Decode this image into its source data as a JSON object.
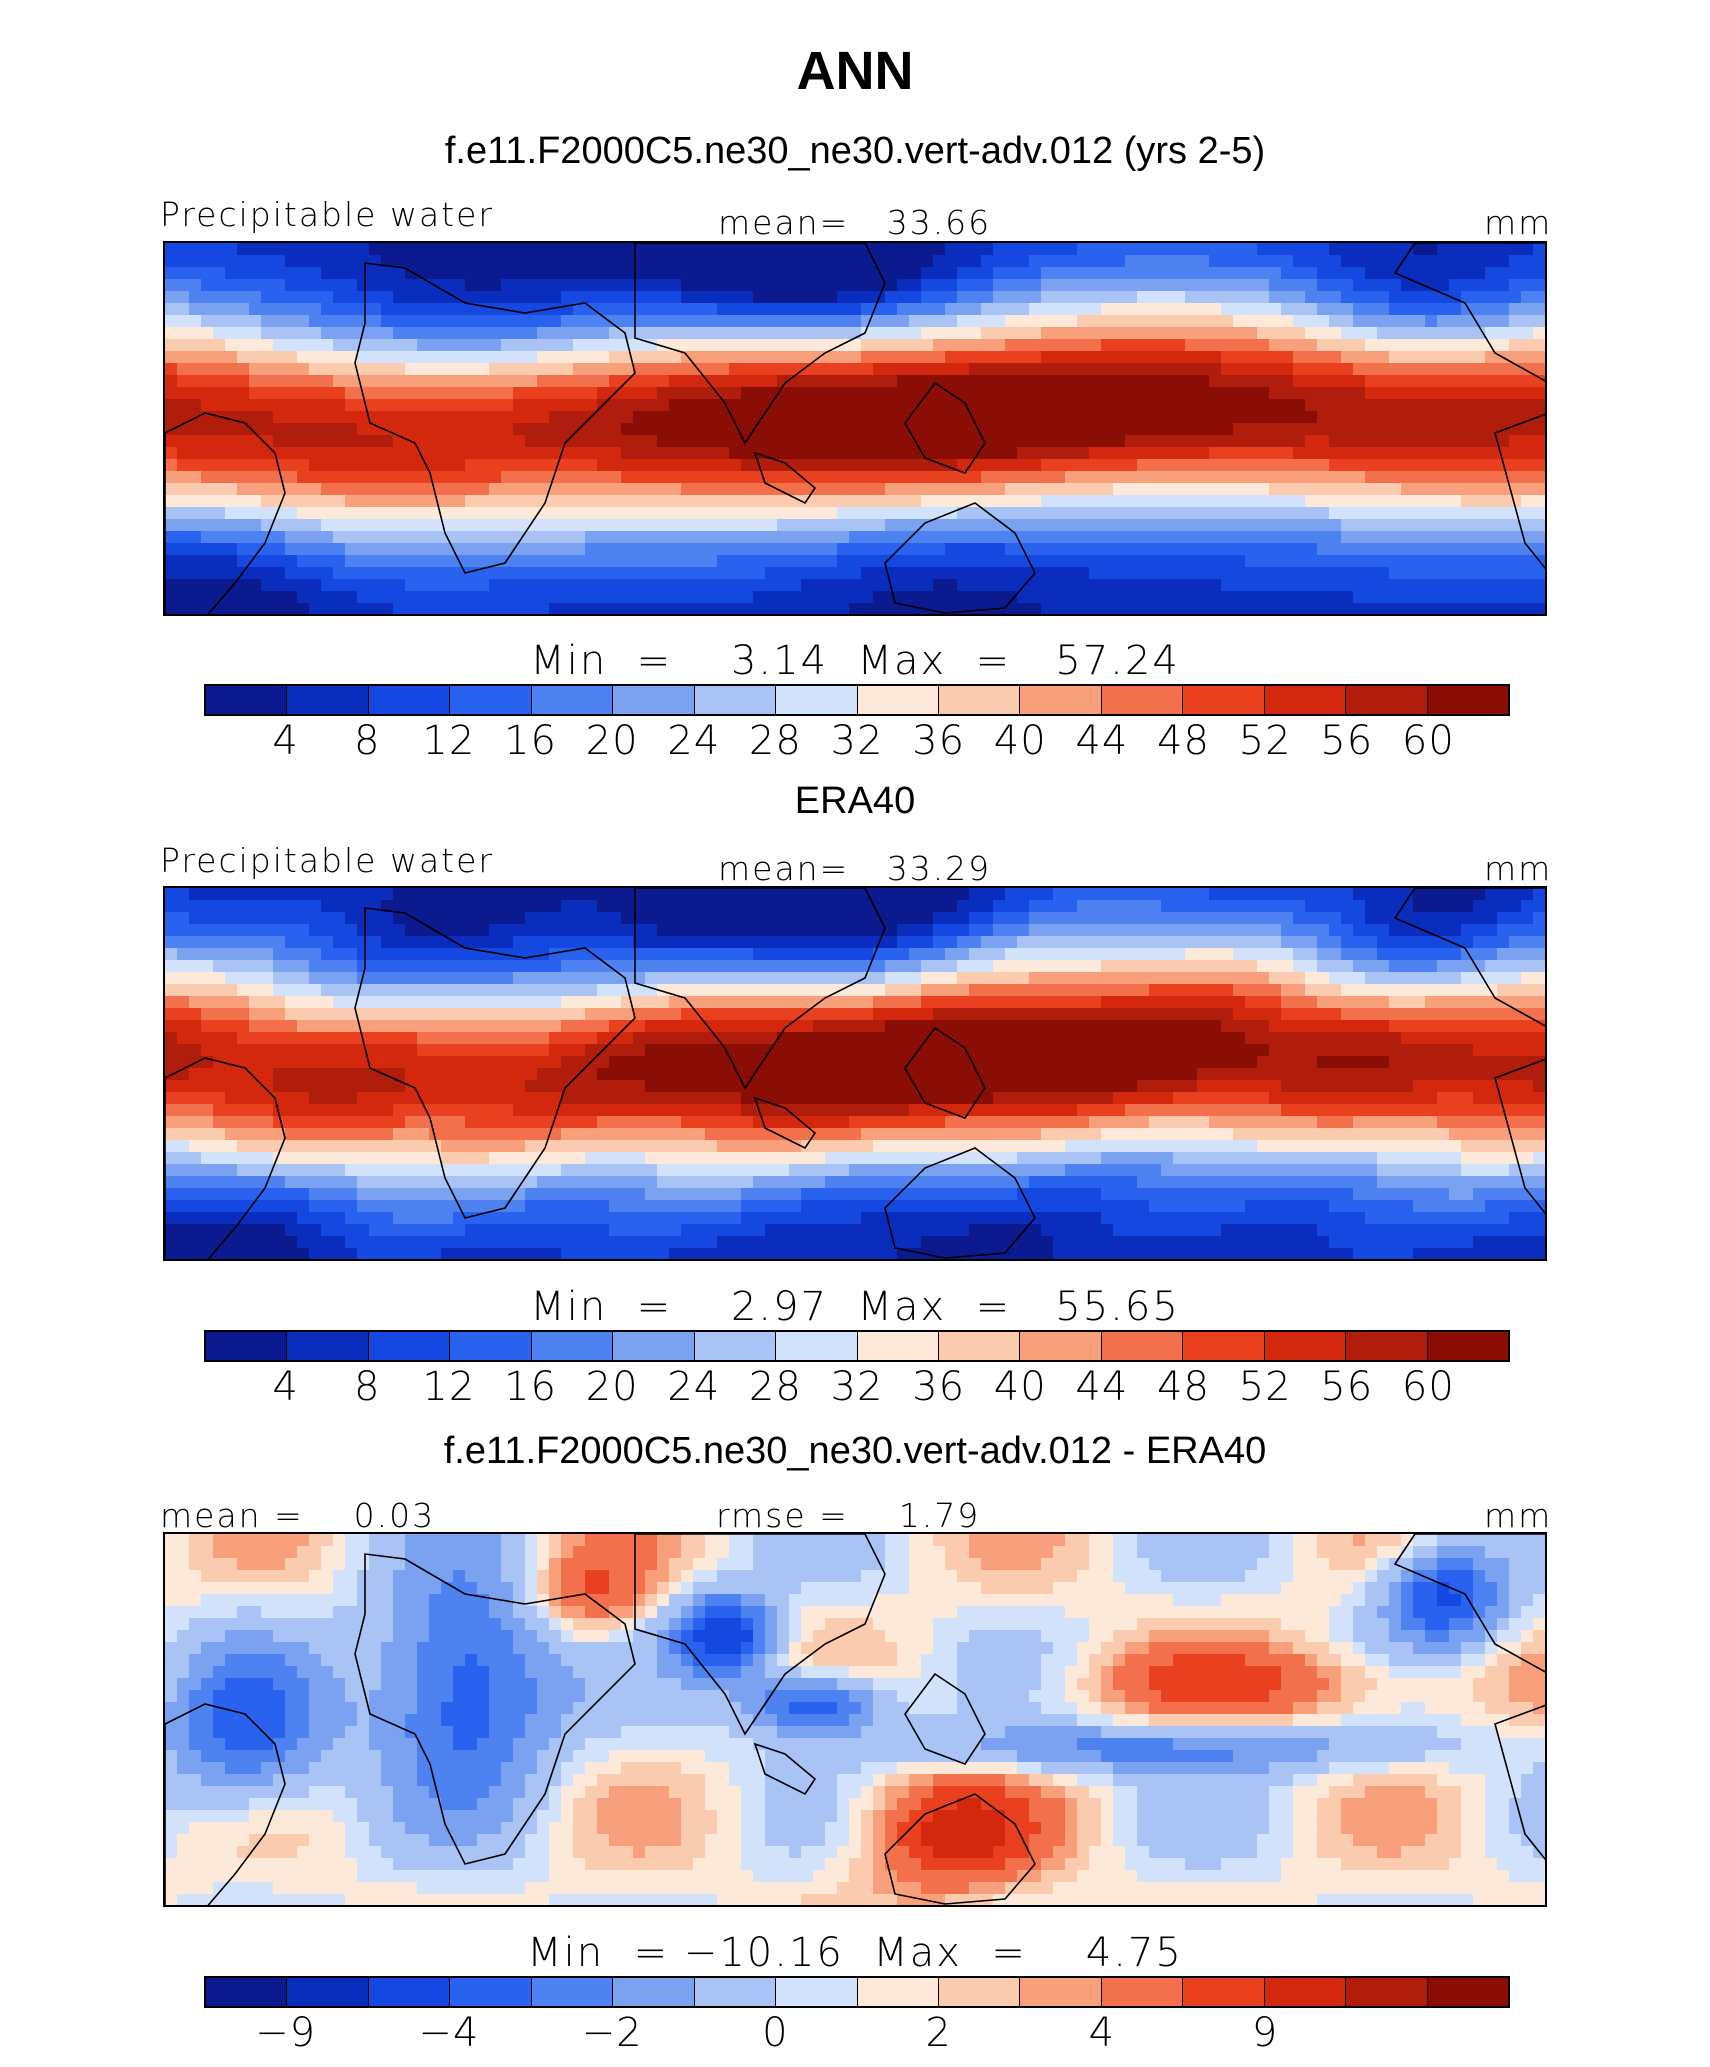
{
  "title": "ANN",
  "colors": [
    "#0b1a8e",
    "#0a2dbd",
    "#1448e0",
    "#2a62f0",
    "#4d82f0",
    "#7aa2f0",
    "#a9c3f5",
    "#d2e2fb",
    "#fde9da",
    "#fbcbb0",
    "#f8a07c",
    "#f3704d",
    "#e9401f",
    "#d4280e",
    "#b01d0c",
    "#8a0d06"
  ],
  "panels": [
    {
      "subtitle": "f.e11.F2000C5.ne30_ne30.vert-adv.012 (yrs 2-5)",
      "left_label": "Precipitable water",
      "center_label": "mean=   33.66",
      "right_label": "mm",
      "minmax": "Min  =    3.14  Max  =   57.24",
      "ticks": [
        "4",
        "8",
        "12",
        "16",
        "20",
        "24",
        "28",
        "32",
        "36",
        "40",
        "44",
        "48",
        "52",
        "56",
        "60"
      ],
      "kind": "model",
      "chart_data": {
        "type": "heatmap",
        "variable": "Precipitable water",
        "units": "mm",
        "mean": 33.66,
        "min": 3.14,
        "max": 57.24,
        "contour_levels": [
          4,
          8,
          12,
          16,
          20,
          24,
          28,
          32,
          36,
          40,
          44,
          48,
          52,
          56,
          60
        ]
      }
    },
    {
      "subtitle": "ERA40",
      "left_label": "Precipitable water",
      "center_label": "mean=   33.29",
      "right_label": "mm",
      "minmax": "Min  =    2.97  Max  =   55.65",
      "ticks": [
        "4",
        "8",
        "12",
        "16",
        "20",
        "24",
        "28",
        "32",
        "36",
        "40",
        "44",
        "48",
        "52",
        "56",
        "60"
      ],
      "kind": "obs",
      "chart_data": {
        "type": "heatmap",
        "variable": "Precipitable water",
        "units": "mm",
        "mean": 33.29,
        "min": 2.97,
        "max": 55.65,
        "contour_levels": [
          4,
          8,
          12,
          16,
          20,
          24,
          28,
          32,
          36,
          40,
          44,
          48,
          52,
          56,
          60
        ]
      }
    },
    {
      "subtitle": "f.e11.F2000C5.ne30_ne30.vert-adv.012 - ERA40",
      "left_label": "mean =    0.03",
      "center_label": "rmse =    1.79",
      "right_label": "mm",
      "minmax": "Min  = −10.16  Max  =    4.75",
      "ticks": [
        "−9",
        "",
        "−4",
        "",
        "−2",
        "",
        "0",
        "",
        "2",
        "",
        "4",
        "",
        "9",
        "",
        ""
      ],
      "kind": "diff",
      "chart_data": {
        "type": "heatmap",
        "variable": "difference",
        "units": "mm",
        "mean": 0.03,
        "rmse": 1.79,
        "min": -10.16,
        "max": 4.75,
        "contour_levels": [
          -9,
          -4,
          -2,
          0,
          2,
          4,
          9
        ]
      }
    }
  ]
}
